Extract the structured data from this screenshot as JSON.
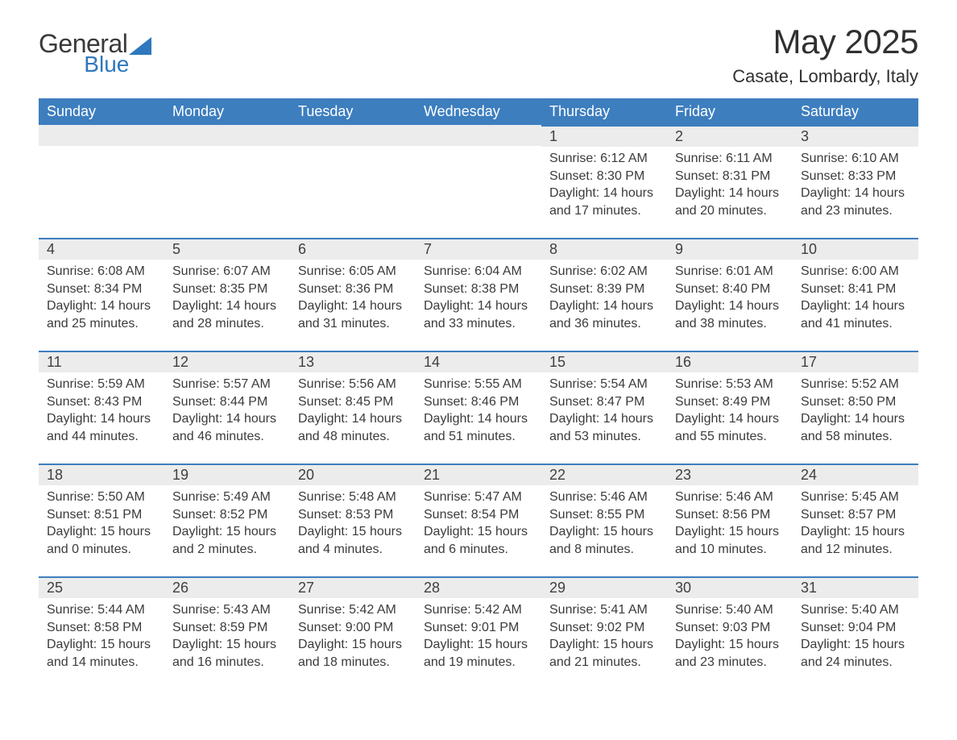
{
  "brand": {
    "word1": "General",
    "word2": "Blue",
    "word1_color": "#3a3a3a",
    "word2_color": "#2f78bd",
    "icon_color": "#2f78bd"
  },
  "title": "May 2025",
  "location": "Casate, Lombardy, Italy",
  "columns": [
    "Sunday",
    "Monday",
    "Tuesday",
    "Wednesday",
    "Thursday",
    "Friday",
    "Saturday"
  ],
  "colors": {
    "header_bg": "#3d7ebf",
    "header_fg": "#ffffff",
    "row_sep": "#3d7ebf",
    "daynum_bg": "#ececec",
    "body_bg": "#ffffff",
    "text": "#3b3b3b"
  },
  "typography": {
    "title_fontsize": 42,
    "location_fontsize": 22,
    "header_fontsize": 18,
    "daynum_fontsize": 18,
    "body_fontsize": 16
  },
  "weeks": [
    [
      null,
      null,
      null,
      null,
      {
        "n": "1",
        "sunrise": "6:12 AM",
        "sunset": "8:30 PM",
        "daylight": "14 hours and 17 minutes."
      },
      {
        "n": "2",
        "sunrise": "6:11 AM",
        "sunset": "8:31 PM",
        "daylight": "14 hours and 20 minutes."
      },
      {
        "n": "3",
        "sunrise": "6:10 AM",
        "sunset": "8:33 PM",
        "daylight": "14 hours and 23 minutes."
      }
    ],
    [
      {
        "n": "4",
        "sunrise": "6:08 AM",
        "sunset": "8:34 PM",
        "daylight": "14 hours and 25 minutes."
      },
      {
        "n": "5",
        "sunrise": "6:07 AM",
        "sunset": "8:35 PM",
        "daylight": "14 hours and 28 minutes."
      },
      {
        "n": "6",
        "sunrise": "6:05 AM",
        "sunset": "8:36 PM",
        "daylight": "14 hours and 31 minutes."
      },
      {
        "n": "7",
        "sunrise": "6:04 AM",
        "sunset": "8:38 PM",
        "daylight": "14 hours and 33 minutes."
      },
      {
        "n": "8",
        "sunrise": "6:02 AM",
        "sunset": "8:39 PM",
        "daylight": "14 hours and 36 minutes."
      },
      {
        "n": "9",
        "sunrise": "6:01 AM",
        "sunset": "8:40 PM",
        "daylight": "14 hours and 38 minutes."
      },
      {
        "n": "10",
        "sunrise": "6:00 AM",
        "sunset": "8:41 PM",
        "daylight": "14 hours and 41 minutes."
      }
    ],
    [
      {
        "n": "11",
        "sunrise": "5:59 AM",
        "sunset": "8:43 PM",
        "daylight": "14 hours and 44 minutes."
      },
      {
        "n": "12",
        "sunrise": "5:57 AM",
        "sunset": "8:44 PM",
        "daylight": "14 hours and 46 minutes."
      },
      {
        "n": "13",
        "sunrise": "5:56 AM",
        "sunset": "8:45 PM",
        "daylight": "14 hours and 48 minutes."
      },
      {
        "n": "14",
        "sunrise": "5:55 AM",
        "sunset": "8:46 PM",
        "daylight": "14 hours and 51 minutes."
      },
      {
        "n": "15",
        "sunrise": "5:54 AM",
        "sunset": "8:47 PM",
        "daylight": "14 hours and 53 minutes."
      },
      {
        "n": "16",
        "sunrise": "5:53 AM",
        "sunset": "8:49 PM",
        "daylight": "14 hours and 55 minutes."
      },
      {
        "n": "17",
        "sunrise": "5:52 AM",
        "sunset": "8:50 PM",
        "daylight": "14 hours and 58 minutes."
      }
    ],
    [
      {
        "n": "18",
        "sunrise": "5:50 AM",
        "sunset": "8:51 PM",
        "daylight": "15 hours and 0 minutes."
      },
      {
        "n": "19",
        "sunrise": "5:49 AM",
        "sunset": "8:52 PM",
        "daylight": "15 hours and 2 minutes."
      },
      {
        "n": "20",
        "sunrise": "5:48 AM",
        "sunset": "8:53 PM",
        "daylight": "15 hours and 4 minutes."
      },
      {
        "n": "21",
        "sunrise": "5:47 AM",
        "sunset": "8:54 PM",
        "daylight": "15 hours and 6 minutes."
      },
      {
        "n": "22",
        "sunrise": "5:46 AM",
        "sunset": "8:55 PM",
        "daylight": "15 hours and 8 minutes."
      },
      {
        "n": "23",
        "sunrise": "5:46 AM",
        "sunset": "8:56 PM",
        "daylight": "15 hours and 10 minutes."
      },
      {
        "n": "24",
        "sunrise": "5:45 AM",
        "sunset": "8:57 PM",
        "daylight": "15 hours and 12 minutes."
      }
    ],
    [
      {
        "n": "25",
        "sunrise": "5:44 AM",
        "sunset": "8:58 PM",
        "daylight": "15 hours and 14 minutes."
      },
      {
        "n": "26",
        "sunrise": "5:43 AM",
        "sunset": "8:59 PM",
        "daylight": "15 hours and 16 minutes."
      },
      {
        "n": "27",
        "sunrise": "5:42 AM",
        "sunset": "9:00 PM",
        "daylight": "15 hours and 18 minutes."
      },
      {
        "n": "28",
        "sunrise": "5:42 AM",
        "sunset": "9:01 PM",
        "daylight": "15 hours and 19 minutes."
      },
      {
        "n": "29",
        "sunrise": "5:41 AM",
        "sunset": "9:02 PM",
        "daylight": "15 hours and 21 minutes."
      },
      {
        "n": "30",
        "sunrise": "5:40 AM",
        "sunset": "9:03 PM",
        "daylight": "15 hours and 23 minutes."
      },
      {
        "n": "31",
        "sunrise": "5:40 AM",
        "sunset": "9:04 PM",
        "daylight": "15 hours and 24 minutes."
      }
    ]
  ],
  "labels": {
    "sunrise": "Sunrise: ",
    "sunset": "Sunset: ",
    "daylight": "Daylight: "
  }
}
